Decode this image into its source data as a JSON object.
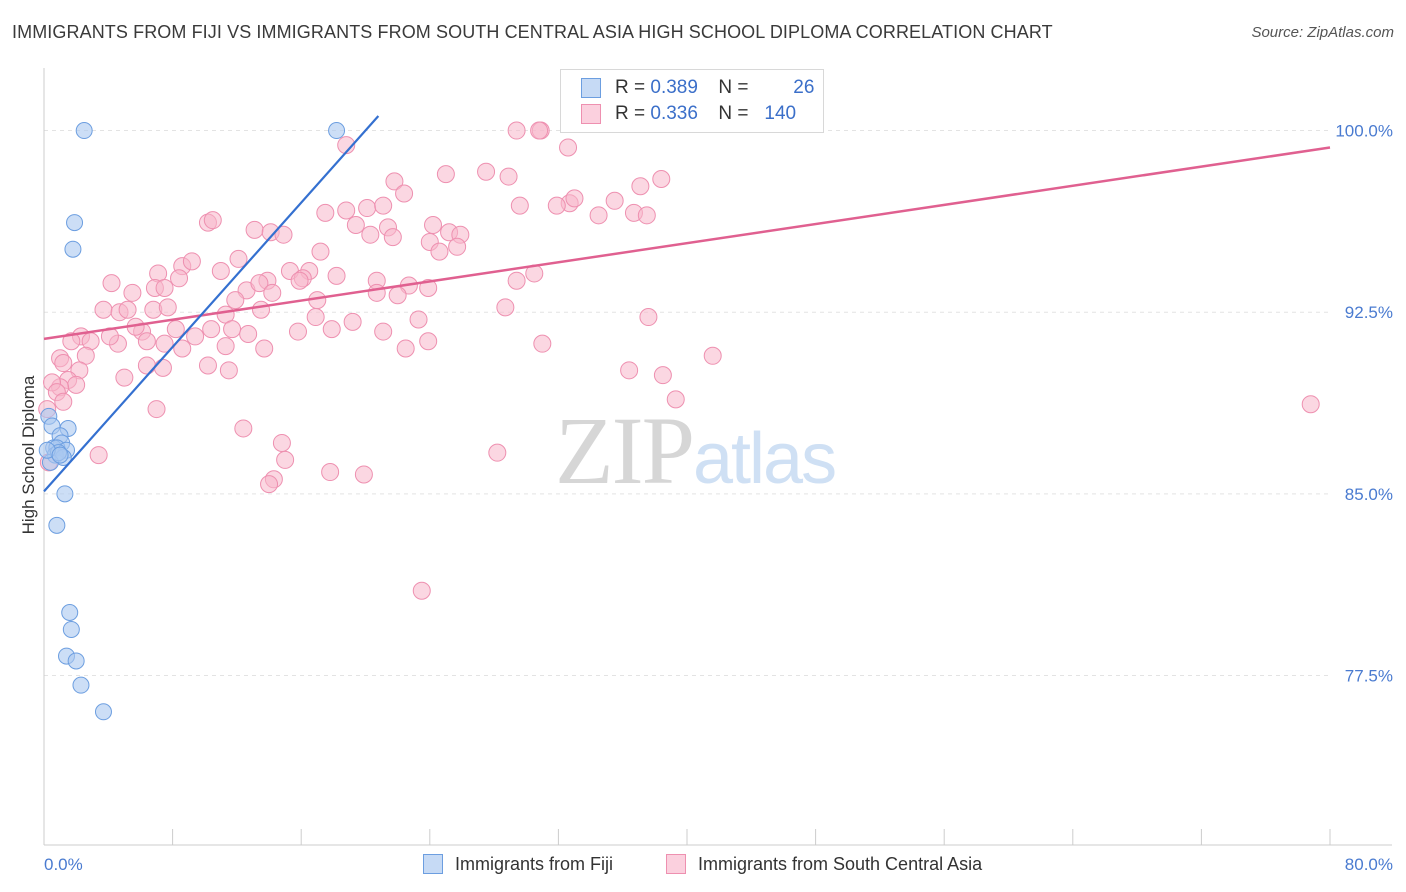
{
  "title": "IMMIGRANTS FROM FIJI VS IMMIGRANTS FROM SOUTH CENTRAL ASIA HIGH SCHOOL DIPLOMA CORRELATION CHART",
  "source": "Source: ZipAtlas.com",
  "watermark": {
    "zip": "ZIP",
    "atlas": "atlas"
  },
  "legend": {
    "rows": [
      {
        "r_label": "R =",
        "r_value": "0.389",
        "n_label": "N =",
        "n_value": "26"
      },
      {
        "r_label": "R =",
        "r_value": "0.336",
        "n_label": "N =",
        "n_value": "140"
      }
    ]
  },
  "colors": {
    "fiji_fill": "#aac8f0",
    "fiji_stroke": "#6c9ee0",
    "fiji_line": "#3470d0",
    "sca_fill": "#f7b6cb",
    "sca_stroke": "#ee90b0",
    "sca_line": "#e06090",
    "grid": "#e3e3e3",
    "axis": "#cccccc",
    "tick_text": "#4a7bd0"
  },
  "chart_data": {
    "type": "scatter",
    "title": "IMMIGRANTS FROM FIJI VS IMMIGRANTS FROM SOUTH CENTRAL ASIA HIGH SCHOOL DIPLOMA CORRELATION CHART",
    "xlabel": "",
    "ylabel": "High School Diploma",
    "xlim": [
      0,
      80
    ],
    "ylim": [
      70.5,
      102.5
    ],
    "x_tick_labels": [
      "0.0%",
      "80.0%"
    ],
    "y_ticks": [
      77.5,
      85.0,
      92.5,
      100.0
    ],
    "y_tick_labels": [
      "77.5%",
      "85.0%",
      "92.5%",
      "100.0%"
    ],
    "legend_position": "top-center",
    "series": [
      {
        "name": "Immigrants from Fiji",
        "r": 0.389,
        "n": 26,
        "trend": {
          "x": [
            0.0,
            20.8
          ],
          "y": [
            85.1,
            100.6
          ]
        },
        "points": [
          [
            2.5,
            100.0
          ],
          [
            18.2,
            100.0
          ],
          [
            1.9,
            96.2
          ],
          [
            1.8,
            95.1
          ],
          [
            0.3,
            88.2
          ],
          [
            0.5,
            87.8
          ],
          [
            1.5,
            87.7
          ],
          [
            1.0,
            87.4
          ],
          [
            1.1,
            87.1
          ],
          [
            0.6,
            86.9
          ],
          [
            0.8,
            86.9
          ],
          [
            1.4,
            86.8
          ],
          [
            0.7,
            86.6
          ],
          [
            1.2,
            86.5
          ],
          [
            0.4,
            86.3
          ],
          [
            0.9,
            86.7
          ],
          [
            1.3,
            85.0
          ],
          [
            0.8,
            83.7
          ],
          [
            1.6,
            80.1
          ],
          [
            1.7,
            79.4
          ],
          [
            1.4,
            78.3
          ],
          [
            2.0,
            78.1
          ],
          [
            2.3,
            77.1
          ],
          [
            3.7,
            76.0
          ],
          [
            0.2,
            86.8
          ],
          [
            1.0,
            86.6
          ]
        ]
      },
      {
        "name": "Immigrants from South Central Asia",
        "r": 0.336,
        "n": 140,
        "trend": {
          "x": [
            0.0,
            80.0
          ],
          "y": [
            91.4,
            99.3
          ]
        },
        "points": [
          [
            29.4,
            100.0
          ],
          [
            30.9,
            100.0
          ],
          [
            30.8,
            100.0
          ],
          [
            32.6,
            99.3
          ],
          [
            18.8,
            99.4
          ],
          [
            25.0,
            98.2
          ],
          [
            27.5,
            98.3
          ],
          [
            28.9,
            98.1
          ],
          [
            21.8,
            97.9
          ],
          [
            32.7,
            97.0
          ],
          [
            38.4,
            98.0
          ],
          [
            29.6,
            96.9
          ],
          [
            37.1,
            97.7
          ],
          [
            22.4,
            97.4
          ],
          [
            31.9,
            96.9
          ],
          [
            33.0,
            97.2
          ],
          [
            35.5,
            97.1
          ],
          [
            36.7,
            96.6
          ],
          [
            37.5,
            96.5
          ],
          [
            34.5,
            96.5
          ],
          [
            20.1,
            96.8
          ],
          [
            21.1,
            96.9
          ],
          [
            18.8,
            96.7
          ],
          [
            21.4,
            96.0
          ],
          [
            19.4,
            96.1
          ],
          [
            17.5,
            96.6
          ],
          [
            10.2,
            96.2
          ],
          [
            10.5,
            96.3
          ],
          [
            13.1,
            95.9
          ],
          [
            14.1,
            95.8
          ],
          [
            14.9,
            95.7
          ],
          [
            20.3,
            95.7
          ],
          [
            21.7,
            95.6
          ],
          [
            24.2,
            96.1
          ],
          [
            25.2,
            95.8
          ],
          [
            25.9,
            95.7
          ],
          [
            24.0,
            95.4
          ],
          [
            25.7,
            95.2
          ],
          [
            24.6,
            95.0
          ],
          [
            17.2,
            95.0
          ],
          [
            8.6,
            94.4
          ],
          [
            9.2,
            94.6
          ],
          [
            12.1,
            94.7
          ],
          [
            15.3,
            94.2
          ],
          [
            16.5,
            94.2
          ],
          [
            16.1,
            93.9
          ],
          [
            11.0,
            94.2
          ],
          [
            7.1,
            94.1
          ],
          [
            6.9,
            93.5
          ],
          [
            4.2,
            93.7
          ],
          [
            5.5,
            93.3
          ],
          [
            7.5,
            93.5
          ],
          [
            8.4,
            93.9
          ],
          [
            13.9,
            93.8
          ],
          [
            12.6,
            93.4
          ],
          [
            13.4,
            93.7
          ],
          [
            14.2,
            93.3
          ],
          [
            15.9,
            93.8
          ],
          [
            18.2,
            94.0
          ],
          [
            20.7,
            93.8
          ],
          [
            22.7,
            93.6
          ],
          [
            23.9,
            93.5
          ],
          [
            20.7,
            93.3
          ],
          [
            22.0,
            93.2
          ],
          [
            29.4,
            93.8
          ],
          [
            30.5,
            94.1
          ],
          [
            11.9,
            93.0
          ],
          [
            17.0,
            93.0
          ],
          [
            3.7,
            92.6
          ],
          [
            4.7,
            92.5
          ],
          [
            5.2,
            92.6
          ],
          [
            6.8,
            92.6
          ],
          [
            7.7,
            92.7
          ],
          [
            11.3,
            92.4
          ],
          [
            13.5,
            92.6
          ],
          [
            16.9,
            92.3
          ],
          [
            19.2,
            92.1
          ],
          [
            23.3,
            92.2
          ],
          [
            28.7,
            92.7
          ],
          [
            37.6,
            92.3
          ],
          [
            2.3,
            91.5
          ],
          [
            2.9,
            91.3
          ],
          [
            4.6,
            91.2
          ],
          [
            4.1,
            91.5
          ],
          [
            6.1,
            91.7
          ],
          [
            6.4,
            91.3
          ],
          [
            5.7,
            91.9
          ],
          [
            8.2,
            91.8
          ],
          [
            7.5,
            91.2
          ],
          [
            8.6,
            91.0
          ],
          [
            9.4,
            91.5
          ],
          [
            10.4,
            91.8
          ],
          [
            11.3,
            91.1
          ],
          [
            11.7,
            91.8
          ],
          [
            12.7,
            91.6
          ],
          [
            13.7,
            91.0
          ],
          [
            15.8,
            91.7
          ],
          [
            17.9,
            91.8
          ],
          [
            21.1,
            91.7
          ],
          [
            22.5,
            91.0
          ],
          [
            23.9,
            91.3
          ],
          [
            31.0,
            91.2
          ],
          [
            1.7,
            91.3
          ],
          [
            1.0,
            90.6
          ],
          [
            2.6,
            90.7
          ],
          [
            1.2,
            90.4
          ],
          [
            2.2,
            90.1
          ],
          [
            6.4,
            90.3
          ],
          [
            7.4,
            90.2
          ],
          [
            10.2,
            90.3
          ],
          [
            11.5,
            90.1
          ],
          [
            36.4,
            90.1
          ],
          [
            41.6,
            90.7
          ],
          [
            38.5,
            89.9
          ],
          [
            1.5,
            89.7
          ],
          [
            2.0,
            89.5
          ],
          [
            1.0,
            89.4
          ],
          [
            0.5,
            89.6
          ],
          [
            0.8,
            89.2
          ],
          [
            5.0,
            89.8
          ],
          [
            1.2,
            88.8
          ],
          [
            0.2,
            88.5
          ],
          [
            7.0,
            88.5
          ],
          [
            39.3,
            88.9
          ],
          [
            78.8,
            88.7
          ],
          [
            12.4,
            87.7
          ],
          [
            14.8,
            87.1
          ],
          [
            3.4,
            86.6
          ],
          [
            15.0,
            86.4
          ],
          [
            28.2,
            86.7
          ],
          [
            17.8,
            85.9
          ],
          [
            19.9,
            85.8
          ],
          [
            14.3,
            85.6
          ],
          [
            14.0,
            85.4
          ],
          [
            23.5,
            81.0
          ],
          [
            0.3,
            86.3
          ]
        ]
      }
    ]
  },
  "bottom_legend": [
    {
      "label": "Immigrants from Fiji"
    },
    {
      "label": "Immigrants from South Central Asia"
    }
  ]
}
